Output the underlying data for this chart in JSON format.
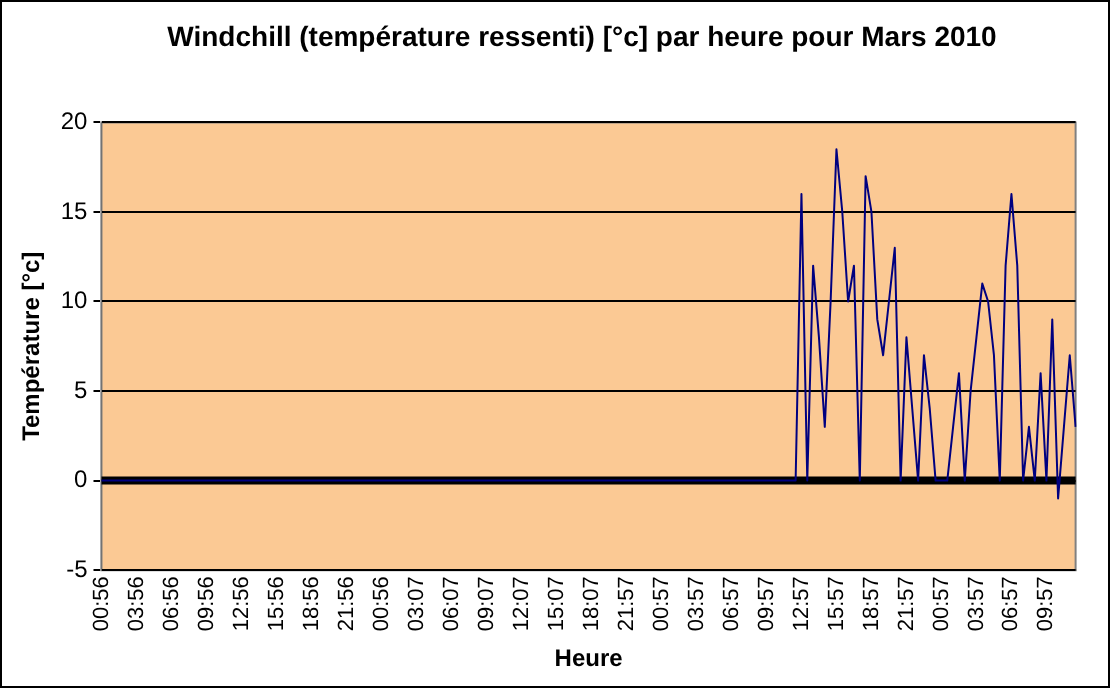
{
  "chart_data": {
    "type": "line",
    "title": "Windchill (température ressenti) [°c] par heure pour Mars 2010",
    "xlabel": "Heure",
    "ylabel": "Température [°c]",
    "categories": [
      "00:56",
      null,
      null,
      null,
      null,
      null,
      "03:56",
      null,
      null,
      null,
      null,
      null,
      "06:56",
      null,
      null,
      null,
      null,
      null,
      "09:56",
      null,
      null,
      null,
      null,
      null,
      "12:56",
      null,
      null,
      null,
      null,
      null,
      "15:56",
      null,
      null,
      null,
      null,
      null,
      "18:56",
      null,
      null,
      null,
      null,
      null,
      "21:56",
      null,
      null,
      null,
      null,
      null,
      "00:56",
      null,
      null,
      null,
      null,
      null,
      "03:07",
      null,
      null,
      null,
      null,
      null,
      "06:07",
      null,
      null,
      null,
      null,
      null,
      "09:07",
      null,
      null,
      null,
      null,
      null,
      "12:07",
      null,
      null,
      null,
      null,
      null,
      "15:07",
      null,
      null,
      null,
      null,
      null,
      "18:07",
      null,
      null,
      null,
      null,
      null,
      "21:57",
      null,
      null,
      null,
      null,
      null,
      "00:57",
      null,
      null,
      null,
      null,
      null,
      "03:57",
      null,
      null,
      null,
      null,
      null,
      "06:57",
      null,
      null,
      null,
      null,
      null,
      "09:57",
      null,
      null,
      null,
      null,
      null,
      "12:57",
      null,
      null,
      null,
      null,
      null,
      "15:57",
      null,
      null,
      null,
      null,
      null,
      "18:57",
      null,
      null,
      null,
      null,
      null,
      "21:57",
      null,
      null,
      null,
      null,
      null,
      "00:57",
      null,
      null,
      null,
      null,
      null,
      "03:57",
      null,
      null,
      null,
      null,
      null,
      "06:57",
      null,
      null,
      null,
      null,
      null,
      "09:57",
      null,
      null,
      null,
      null,
      null
    ],
    "series": [
      {
        "color": "#000080",
        "values": [
          0,
          0,
          0,
          0,
          0,
          0,
          0,
          0,
          0,
          0,
          0,
          0,
          0,
          0,
          0,
          0,
          0,
          0,
          0,
          0,
          0,
          0,
          0,
          0,
          0,
          0,
          0,
          0,
          0,
          0,
          0,
          0,
          0,
          0,
          0,
          0,
          0,
          0,
          0,
          0,
          0,
          0,
          0,
          0,
          0,
          0,
          0,
          0,
          0,
          0,
          0,
          0,
          0,
          0,
          0,
          0,
          0,
          0,
          0,
          0,
          0,
          0,
          0,
          0,
          0,
          0,
          0,
          0,
          0,
          0,
          0,
          0,
          0,
          0,
          0,
          0,
          0,
          0,
          0,
          0,
          0,
          0,
          0,
          0,
          0,
          0,
          0,
          0,
          0,
          0,
          0,
          0,
          0,
          0,
          0,
          0,
          0,
          0,
          0,
          0,
          0,
          0,
          0,
          0,
          0,
          0,
          0,
          0,
          0,
          0,
          0,
          0,
          0,
          0,
          0,
          0,
          0,
          0,
          0,
          0,
          16,
          0,
          12,
          8,
          3,
          10,
          18.5,
          15,
          10,
          12,
          0,
          17,
          15,
          9,
          7,
          10,
          13,
          0,
          8,
          4,
          0,
          7,
          4,
          0,
          0,
          0,
          3,
          6,
          0,
          5,
          8,
          11,
          10,
          7,
          0,
          12,
          16,
          12,
          0,
          3,
          0,
          6,
          0,
          9,
          -1,
          3,
          7,
          3
        ]
      }
    ],
    "ylim": [
      -5,
      20
    ],
    "yticks": [
      -5,
      0,
      5,
      10,
      15,
      20
    ],
    "grid": "y",
    "legend": false,
    "marker": "none",
    "line_style": "solid",
    "ref_lines": [
      {
        "axis": "y",
        "value": 0,
        "color": "#000000"
      }
    ]
  }
}
